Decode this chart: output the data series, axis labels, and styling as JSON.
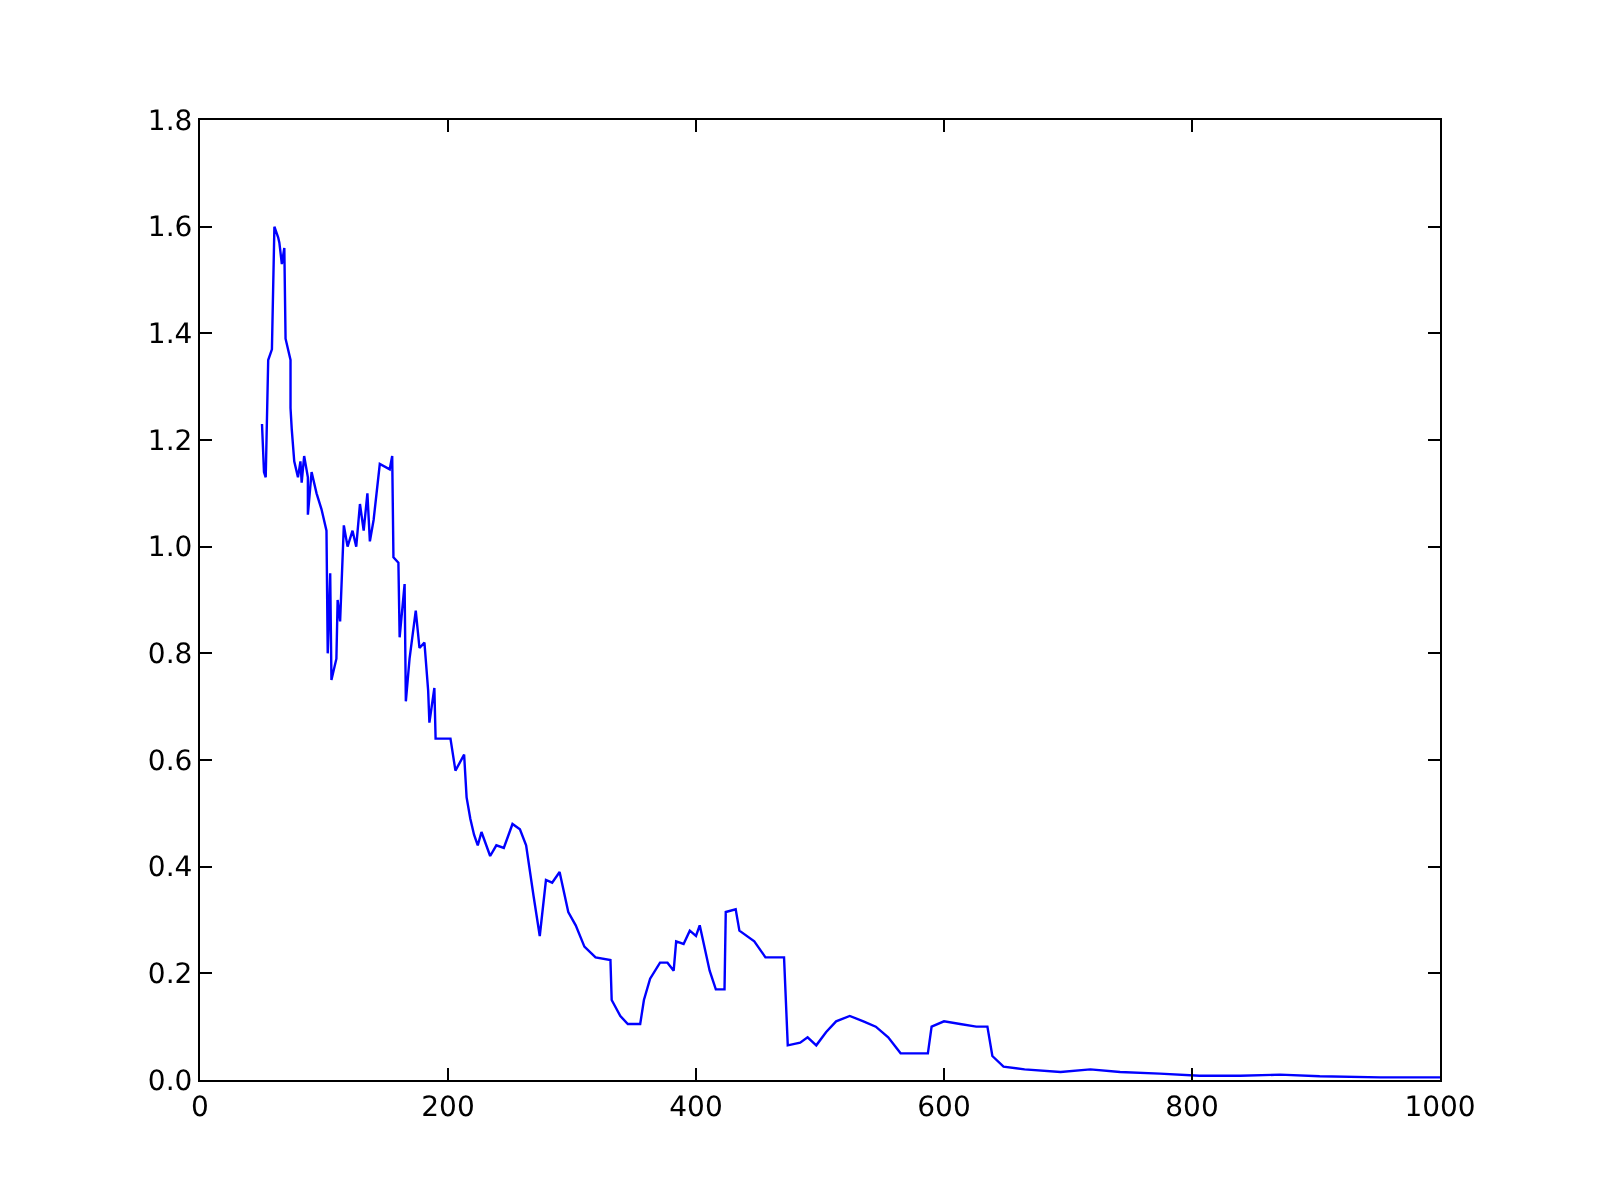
{
  "chart_data": {
    "type": "line",
    "x": [
      50,
      51.6,
      53,
      55,
      58,
      60,
      63,
      64,
      66,
      68,
      69,
      73,
      73,
      74,
      76,
      79,
      81,
      82,
      84,
      87,
      87,
      90,
      94,
      98,
      102,
      103,
      105,
      106,
      110,
      111,
      113,
      116,
      119,
      123,
      126,
      129,
      132,
      135,
      137,
      140,
      145,
      153,
      155,
      156,
      160,
      161,
      165,
      166,
      169,
      174,
      177,
      181,
      184,
      185,
      189,
      190,
      202,
      206,
      213,
      215,
      218,
      221,
      224,
      227,
      234,
      239,
      245,
      252,
      258,
      263,
      269,
      274,
      279,
      284,
      290,
      297,
      303,
      310,
      319,
      331,
      332,
      339,
      345,
      355,
      358,
      363,
      371,
      377,
      382,
      384,
      390,
      395,
      400,
      403,
      411,
      416,
      423,
      424,
      432,
      435,
      447,
      456,
      471,
      474,
      484,
      490,
      497,
      505,
      513,
      524,
      535,
      545,
      555,
      565,
      577,
      587,
      590,
      600,
      613,
      626,
      635,
      639,
      648,
      665,
      694,
      718,
      742,
      774,
      806,
      839,
      871,
      903,
      952,
      1000
    ],
    "series": [
      {
        "color": "#0000ff",
        "values": [
          1.23,
          1.14,
          1.13,
          1.35,
          1.37,
          1.6,
          1.58,
          1.57,
          1.53,
          1.56,
          1.39,
          1.35,
          1.26,
          1.22,
          1.16,
          1.13,
          1.16,
          1.12,
          1.17,
          1.13,
          1.06,
          1.14,
          1.1,
          1.07,
          1.03,
          0.8,
          0.95,
          0.75,
          0.79,
          0.9,
          0.86,
          1.04,
          1.0,
          1.03,
          1.0,
          1.08,
          1.03,
          1.1,
          1.01,
          1.05,
          1.155,
          1.145,
          1.17,
          0.98,
          0.97,
          0.83,
          0.93,
          0.71,
          0.79,
          0.88,
          0.81,
          0.82,
          0.73,
          0.67,
          0.735,
          0.64,
          0.64,
          0.58,
          0.61,
          0.53,
          0.49,
          0.46,
          0.44,
          0.465,
          0.42,
          0.44,
          0.435,
          0.48,
          0.47,
          0.44,
          0.345,
          0.27,
          0.375,
          0.37,
          0.39,
          0.315,
          0.29,
          0.25,
          0.23,
          0.225,
          0.15,
          0.12,
          0.105,
          0.105,
          0.15,
          0.19,
          0.22,
          0.22,
          0.205,
          0.26,
          0.255,
          0.28,
          0.27,
          0.29,
          0.205,
          0.17,
          0.17,
          0.315,
          0.32,
          0.28,
          0.26,
          0.23,
          0.23,
          0.065,
          0.07,
          0.08,
          0.065,
          0.09,
          0.11,
          0.12,
          0.11,
          0.1,
          0.08,
          0.05,
          0.05,
          0.05,
          0.1,
          0.11,
          0.105,
          0.1,
          0.1,
          0.045,
          0.025,
          0.02,
          0.015,
          0.02,
          0.015,
          0.012,
          0.008,
          0.008,
          0.01,
          0.007,
          0.005,
          0.005
        ]
      }
    ],
    "xlim": [
      0,
      1000
    ],
    "xticks": [
      0,
      200,
      400,
      600,
      800,
      1000
    ],
    "ylim": [
      0,
      1.8
    ],
    "yticks": [
      {
        "value": 0,
        "label": "0.0"
      },
      {
        "value": 0.2,
        "label": "0.2"
      },
      {
        "value": 0.4,
        "label": "0.4"
      },
      {
        "value": 0.6,
        "label": "0.6"
      },
      {
        "value": 0.8,
        "label": "0.8"
      },
      {
        "value": 1,
        "label": "1.0"
      },
      {
        "value": 1.2,
        "label": "1.2"
      },
      {
        "value": 1.4,
        "label": "1.4"
      },
      {
        "value": 1.6,
        "label": "1.6"
      },
      {
        "value": 1.8,
        "label": "1.8"
      }
    ],
    "grid": false,
    "legend": false,
    "marker": "none",
    "line_style": "solid"
  }
}
